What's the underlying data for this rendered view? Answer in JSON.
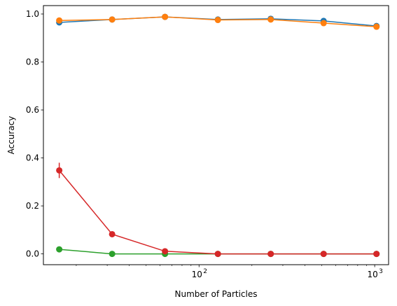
{
  "chart_data": {
    "type": "line",
    "xlabel": "Number of Particles",
    "ylabel": "Accuracy",
    "x_scale": "log",
    "xlim": [
      13,
      1200
    ],
    "ylim": [
      -0.045,
      1.035
    ],
    "grid": false,
    "x_ticks": [
      {
        "value": 100,
        "base": "10",
        "exp": "2"
      },
      {
        "value": 1000,
        "base": "10",
        "exp": "3"
      }
    ],
    "y_ticks": [
      {
        "value": 0.0,
        "label": "0.0"
      },
      {
        "value": 0.2,
        "label": "0.2"
      },
      {
        "value": 0.4,
        "label": "0.4"
      },
      {
        "value": 0.6,
        "label": "0.6"
      },
      {
        "value": 0.8,
        "label": "0.8"
      },
      {
        "value": 1.0,
        "label": "1.0"
      }
    ],
    "x": [
      16,
      32,
      64,
      128,
      256,
      512,
      1024
    ],
    "series": [
      {
        "color": "#1f77b4",
        "values": [
          0.965,
          0.977,
          0.988,
          0.977,
          0.98,
          0.971,
          0.95
        ],
        "errors": [
          0,
          0,
          0,
          0,
          0,
          0,
          0
        ]
      },
      {
        "color": "#ff7f0e",
        "values": [
          0.973,
          0.977,
          0.988,
          0.975,
          0.977,
          0.962,
          0.947
        ],
        "errors": [
          0,
          0,
          0,
          0,
          0,
          0,
          0
        ]
      },
      {
        "color": "#2ca02c",
        "values": [
          0.019,
          0.0,
          0.0,
          0.0,
          0.0,
          0.0,
          0.0
        ],
        "errors": [
          0,
          0,
          0,
          0,
          0,
          0,
          0
        ]
      },
      {
        "color": "#d62728",
        "values": [
          0.348,
          0.082,
          0.011,
          0.0,
          0.0,
          0.0,
          0.0
        ],
        "errors": [
          0.032,
          0.012,
          0,
          0,
          0,
          0,
          0
        ]
      }
    ]
  }
}
